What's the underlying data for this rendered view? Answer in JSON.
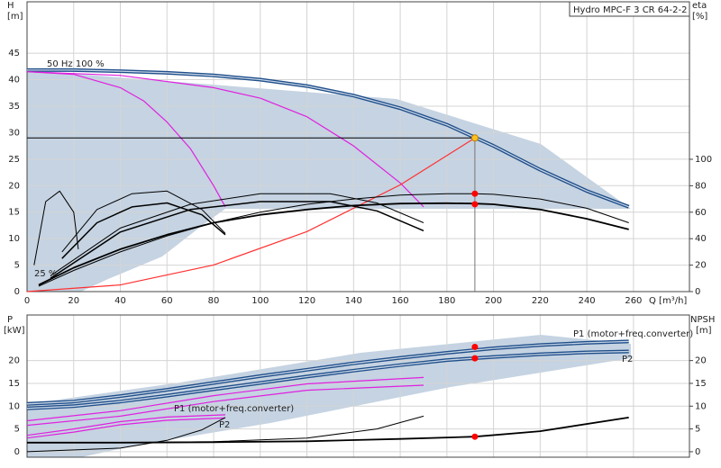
{
  "chart_data": [
    {
      "type": "line",
      "title": "Hydro MPC-F 3 CR 64-2-2",
      "y_label": "H",
      "y_unit": "[m]",
      "y2_label": "eta",
      "y2_unit": "[%]",
      "x_label": "Q [m³/h]",
      "annotations": [
        "50 Hz 100 %",
        "25 %"
      ],
      "grid": true,
      "show_xtick_labels": true,
      "xlim": [
        0,
        284
      ],
      "xticks": [
        0,
        20,
        40,
        60,
        80,
        100,
        120,
        140,
        160,
        180,
        200,
        220,
        240,
        260
      ],
      "ylim": [
        0,
        54.7
      ],
      "yticks": [
        0,
        5,
        10,
        15,
        20,
        25,
        30,
        35,
        40,
        45
      ],
      "y2lim": [
        0,
        219
      ],
      "y2ticks": [
        0,
        20,
        40,
        60,
        80,
        100
      ],
      "series": [
        {
          "color": "#1f4e8a",
          "style": "double",
          "x": [
            0,
            20,
            40,
            60,
            80,
            100,
            120,
            140,
            160,
            180,
            200,
            220,
            240,
            258
          ],
          "values": [
            41.8,
            41.8,
            41.6,
            41.3,
            40.8,
            40.0,
            38.8,
            37.0,
            34.6,
            31.5,
            27.5,
            23,
            19,
            16
          ]
        },
        {
          "color": "#e020e0",
          "x": [
            0,
            20,
            40,
            50,
            60,
            70,
            80,
            85
          ],
          "values": [
            41.5,
            41,
            38.5,
            36,
            32,
            27,
            20,
            16
          ]
        },
        {
          "color": "#e020e0",
          "x": [
            0,
            40,
            80,
            100,
            120,
            140,
            160,
            170
          ],
          "values": [
            41.5,
            40.8,
            38.5,
            36.5,
            33,
            27.5,
            20.5,
            16
          ]
        },
        {
          "color": "#ff3030",
          "x": [
            0,
            40,
            80,
            120,
            160,
            192
          ],
          "values": [
            0,
            1.26,
            5.03,
            11.33,
            20.14,
            29
          ]
        },
        {
          "color": "#000000",
          "width": 1.8,
          "axis": "y2",
          "x": [
            5,
            20,
            40,
            60,
            80,
            100,
            120,
            140,
            160,
            180,
            192,
            200,
            220,
            240,
            258
          ],
          "values": [
            5,
            18,
            32,
            43,
            52,
            58,
            62,
            65,
            66.5,
            66.8,
            66.5,
            66,
            62,
            55,
            47
          ]
        },
        {
          "color": "#000000",
          "width": 1,
          "axis": "y2",
          "x": [
            5,
            20,
            40,
            60,
            80,
            100,
            120,
            140,
            160,
            180,
            192,
            200,
            220,
            240,
            258
          ],
          "values": [
            4,
            16,
            30,
            42,
            52,
            60,
            66,
            70,
            73,
            74,
            74,
            73.5,
            70,
            63,
            52
          ]
        },
        {
          "color": "#000000",
          "width": 1.5,
          "axis": "y2",
          "x": [
            10,
            40,
            70,
            100,
            130,
            150,
            170
          ],
          "values": [
            10,
            45,
            62,
            68,
            68,
            61,
            46
          ]
        },
        {
          "color": "#000000",
          "width": 1,
          "axis": "y2",
          "x": [
            10,
            40,
            70,
            100,
            130,
            150,
            170
          ],
          "values": [
            12,
            48,
            66,
            74,
            74,
            67,
            52
          ]
        },
        {
          "color": "#000000",
          "width": 1.5,
          "axis": "y2",
          "x": [
            15,
            30,
            45,
            60,
            75,
            85
          ],
          "values": [
            25,
            52,
            64,
            67,
            58,
            43
          ]
        },
        {
          "color": "#000000",
          "width": 1,
          "axis": "y2",
          "x": [
            15,
            30,
            45,
            60,
            75,
            85
          ],
          "values": [
            30,
            62,
            74,
            76,
            62,
            44
          ]
        },
        {
          "color": "#000000",
          "width": 1,
          "axis": "y2",
          "x": [
            3,
            8,
            14,
            20,
            22
          ],
          "values": [
            20,
            68,
            76,
            60,
            32
          ]
        },
        {
          "color": "#ffc020",
          "mode": "markers",
          "guides": true,
          "x": [
            192
          ],
          "values": [
            29
          ]
        },
        {
          "color": "#ff0000",
          "mode": "markers",
          "axis": "y2",
          "x": [
            192,
            192
          ],
          "values": [
            74,
            66
          ]
        }
      ]
    },
    {
      "type": "line",
      "y_label": "P",
      "y_unit": "[kW]",
      "y2_label": "NPSH",
      "y2_unit": "[m]",
      "annotations": [
        "P1 (motor+freq.converter)",
        "P2",
        "P1 (motor+freq.converter)",
        "P2"
      ],
      "grid": true,
      "show_xtick_labels": false,
      "xlim": [
        0,
        284
      ],
      "xticks": [
        0,
        20,
        40,
        60,
        80,
        100,
        120,
        140,
        160,
        180,
        200,
        220,
        240,
        260
      ],
      "ylim": [
        -1.2,
        30
      ],
      "yticks": [
        0,
        5,
        10,
        15,
        20
      ],
      "y2lim": [
        -1.2,
        30
      ],
      "y2ticks": [
        0,
        5,
        10,
        15,
        20
      ],
      "series": [
        {
          "color": "#1f4e8a",
          "style": "double",
          "x": [
            0,
            20,
            40,
            60,
            80,
            100,
            120,
            140,
            160,
            180,
            200,
            220,
            240,
            258
          ],
          "values": [
            10.5,
            11,
            12.2,
            13.6,
            15.1,
            16.6,
            18,
            19.4,
            20.6,
            21.7,
            22.7,
            23.4,
            23.9,
            24.2
          ]
        },
        {
          "color": "#1f4e8a",
          "style": "double",
          "x": [
            0,
            20,
            40,
            60,
            80,
            100,
            120,
            140,
            160,
            180,
            200,
            220,
            240,
            258
          ],
          "values": [
            9.5,
            10,
            11,
            12.3,
            13.7,
            15.1,
            16.5,
            17.8,
            19,
            20.1,
            20.8,
            21.4,
            21.8,
            22
          ]
        },
        {
          "color": "#e020e0",
          "x": [
            0,
            40,
            80,
            120,
            170
          ],
          "values": [
            6.8,
            9,
            12.3,
            14.9,
            16.3
          ]
        },
        {
          "color": "#e020e0",
          "x": [
            0,
            40,
            80,
            120,
            170
          ],
          "values": [
            5.8,
            7.8,
            11,
            13.5,
            14.6
          ]
        },
        {
          "color": "#e020e0",
          "x": [
            0,
            20,
            40,
            60,
            85
          ],
          "values": [
            3.6,
            5,
            6.6,
            7.6,
            8.1
          ]
        },
        {
          "color": "#e020e0",
          "x": [
            0,
            20,
            40,
            60,
            85
          ],
          "values": [
            3,
            4.3,
            5.9,
            6.9,
            7.4
          ]
        },
        {
          "color": "#000000",
          "width": 1.8,
          "axis": "y2",
          "x": [
            0,
            40,
            80,
            120,
            160,
            192,
            220,
            258
          ],
          "values": [
            2,
            2,
            2.1,
            2.3,
            2.8,
            3.3,
            4.5,
            7.5
          ]
        },
        {
          "color": "#000000",
          "width": 1,
          "axis": "y2",
          "x": [
            0,
            40,
            80,
            120,
            150,
            170
          ],
          "values": [
            2,
            2,
            2.2,
            3,
            5,
            7.8
          ]
        },
        {
          "color": "#000000",
          "width": 1,
          "axis": "y2",
          "x": [
            0,
            40,
            60,
            75,
            85
          ],
          "values": [
            0,
            0.8,
            2.5,
            4.8,
            7.5
          ]
        },
        {
          "color": "#ff0000",
          "mode": "markers",
          "x": [
            192,
            192
          ],
          "values": [
            23,
            20.5
          ]
        },
        {
          "color": "#ff0000",
          "mode": "markers",
          "axis": "y2",
          "x": [
            192
          ],
          "values": [
            3.3
          ]
        }
      ]
    }
  ]
}
